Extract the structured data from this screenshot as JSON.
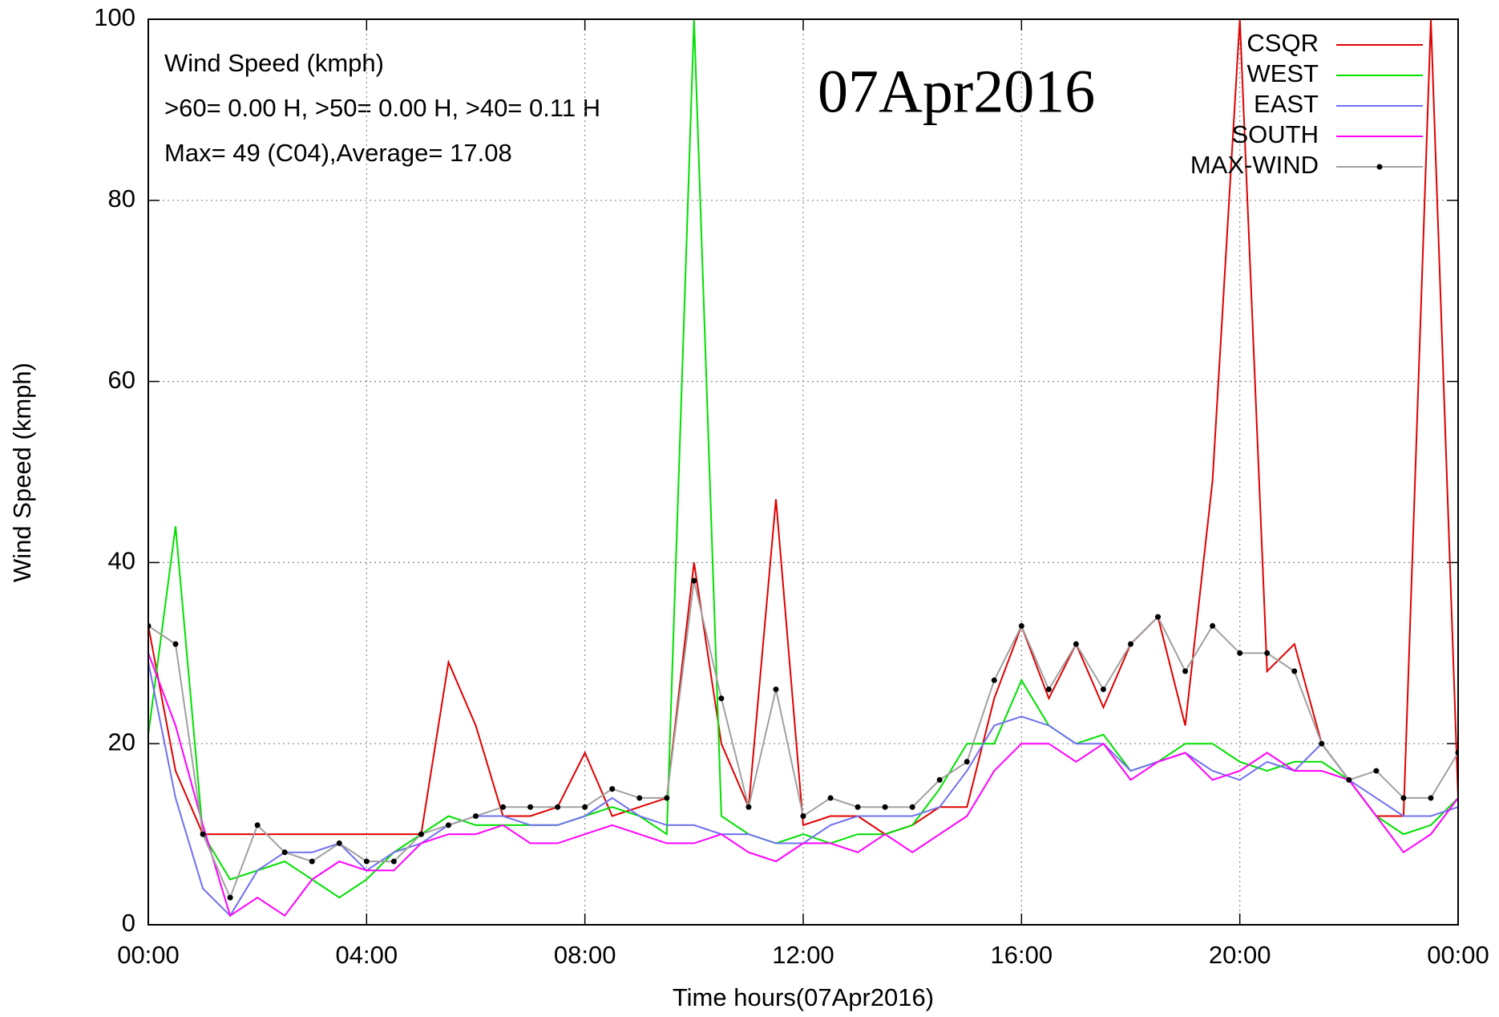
{
  "chart_data": {
    "type": "line",
    "annotations": [
      "Wind Speed (kmph)",
      ">60=  0.00 H, >50=  0.00 H, >40=  0.11 H",
      "Max= 49 (C04),Average= 17.08"
    ],
    "date_label": "07Apr2016",
    "xlabel": "Time hours(07Apr2016)",
    "ylabel": "Wind Speed (kmph)",
    "x": [
      0,
      0.5,
      1,
      1.5,
      2,
      2.5,
      3,
      3.5,
      4,
      4.5,
      5,
      5.5,
      6,
      6.5,
      7,
      7.5,
      8,
      8.5,
      9,
      9.5,
      10,
      10.5,
      11,
      11.5,
      12,
      12.5,
      13,
      13.5,
      14,
      14.5,
      15,
      15.5,
      16,
      16.5,
      17,
      17.5,
      18,
      18.5,
      19,
      19.5,
      20,
      20.5,
      21,
      21.5,
      22,
      22.5,
      23,
      23.5,
      24
    ],
    "series": [
      {
        "name": "CSQR",
        "color": "#e00000",
        "values": [
          33,
          17,
          10,
          10,
          10,
          10,
          10,
          10,
          10,
          10,
          10,
          29,
          22,
          12,
          12,
          13,
          19,
          12,
          13,
          14,
          40,
          20,
          13,
          47,
          11,
          12,
          12,
          10,
          11,
          13,
          13,
          25,
          33,
          25,
          31,
          24,
          31,
          34,
          22,
          49,
          100,
          28,
          31,
          20,
          16,
          12,
          12,
          100,
          14
        ]
      },
      {
        "name": "WEST",
        "color": "#00e000",
        "values": [
          21,
          44,
          10,
          5,
          6,
          7,
          5,
          3,
          5,
          8,
          10,
          12,
          11,
          11,
          11,
          11,
          12,
          13,
          12,
          10,
          100,
          12,
          10,
          9,
          10,
          9,
          10,
          10,
          11,
          15,
          20,
          20,
          27,
          22,
          20,
          21,
          17,
          18,
          20,
          20,
          18,
          17,
          18,
          18,
          16,
          12,
          10,
          11,
          14
        ]
      },
      {
        "name": "EAST",
        "color": "#7070f0",
        "values": [
          29,
          14,
          4,
          1,
          6,
          8,
          8,
          9,
          6,
          8,
          9,
          11,
          12,
          12,
          11,
          11,
          12,
          14,
          12,
          11,
          11,
          10,
          10,
          9,
          9,
          11,
          12,
          12,
          12,
          13,
          17,
          22,
          23,
          22,
          20,
          20,
          17,
          18,
          19,
          17,
          16,
          18,
          17,
          20,
          16,
          14,
          12,
          12,
          13
        ]
      },
      {
        "name": "SOUTH",
        "color": "#ff00ff",
        "values": [
          30,
          22,
          11,
          1,
          3,
          1,
          5,
          7,
          6,
          6,
          9,
          10,
          10,
          11,
          9,
          9,
          10,
          11,
          10,
          9,
          9,
          10,
          8,
          7,
          9,
          9,
          8,
          10,
          8,
          10,
          12,
          17,
          20,
          20,
          18,
          20,
          16,
          18,
          19,
          16,
          17,
          19,
          17,
          17,
          16,
          12,
          8,
          10,
          14
        ]
      },
      {
        "name": "MAX-WIND",
        "color": "#a0a0a0",
        "marker_color": "#000000",
        "values": [
          33,
          31,
          10,
          3,
          11,
          8,
          7,
          9,
          7,
          7,
          10,
          11,
          12,
          13,
          13,
          13,
          13,
          15,
          14,
          14,
          38,
          25,
          13,
          26,
          12,
          14,
          13,
          13,
          13,
          16,
          18,
          27,
          33,
          26,
          31,
          26,
          31,
          34,
          28,
          33,
          30,
          30,
          28,
          20,
          16,
          17,
          14,
          14,
          19
        ]
      }
    ],
    "xlim": [
      0,
      24
    ],
    "xticks": [
      {
        "value": 0,
        "label": "00:00"
      },
      {
        "value": 4,
        "label": "04:00"
      },
      {
        "value": 8,
        "label": "08:00"
      },
      {
        "value": 12,
        "label": "12:00"
      },
      {
        "value": 16,
        "label": "16:00"
      },
      {
        "value": 20,
        "label": "20:00"
      },
      {
        "value": 24,
        "label": "00:00"
      }
    ],
    "ylim": [
      0,
      100
    ],
    "yticks": [
      0,
      20,
      40,
      60,
      80,
      100
    ],
    "grid": true,
    "legend": "top-right"
  }
}
